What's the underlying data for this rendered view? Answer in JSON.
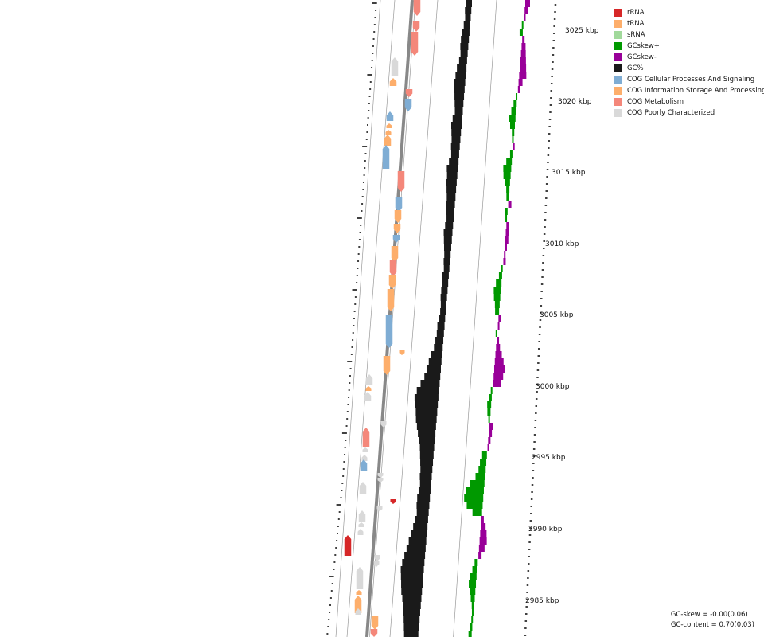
{
  "legend": [
    {
      "label": "rRNA",
      "color": "#d62728"
    },
    {
      "label": "tRNA",
      "color": "#fdae6b"
    },
    {
      "label": "sRNA",
      "color": "#a1d99b"
    },
    {
      "label": "GCskew+",
      "color": "#009900"
    },
    {
      "label": "GCskew-",
      "color": "#990099"
    },
    {
      "label": "GC%",
      "color": "#1a1a1a"
    },
    {
      "label": "COG Cellular Processes And Signaling",
      "color": "#7fadd4"
    },
    {
      "label": "COG Information Storage And Processing",
      "color": "#fdae6b"
    },
    {
      "label": "COG Metabolism",
      "color": "#f4877a"
    },
    {
      "label": "COG Poorly Characterized",
      "color": "#d9d9d9"
    }
  ],
  "scale_labels": [
    "3025 kbp",
    "3020 kbp",
    "3015 kbp",
    "3010 kbp",
    "3005 kbp",
    "3000 kbp",
    "2995 kbp",
    "2990 kbp",
    "2985 kbp"
  ],
  "stats": {
    "gc_skew": "GC-skew = -0.00(0.06)",
    "gc_content": "GC-content = 0.70(0.03)"
  },
  "colors": {
    "backbone": "#888888",
    "gc_content": "#1a1a1a",
    "gc_skew_pos": "#009900",
    "gc_skew_neg": "#990099",
    "cog_cellular": "#7fadd4",
    "cog_information": "#fdae6b",
    "cog_metabolism": "#f4877a",
    "cog_poorly": "#d9d9d9",
    "rrna": "#d62728"
  }
}
